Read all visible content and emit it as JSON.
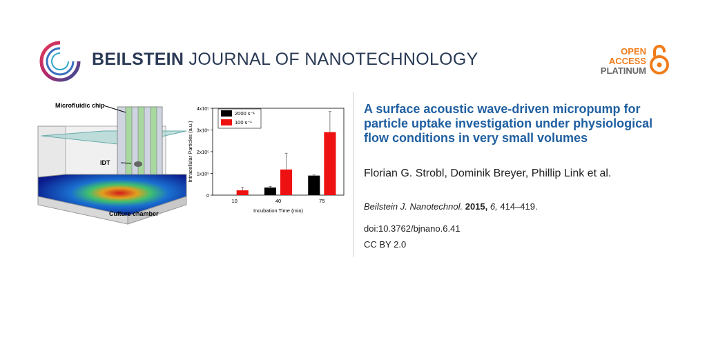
{
  "header": {
    "journal_bold": "BEILSTEIN",
    "journal_rest": "JOURNAL OF NANOTECHNOLOGY",
    "open_access_line1": "OPEN",
    "open_access_line2": "ACCESS",
    "open_access_line3": "PLATINUM"
  },
  "figure": {
    "label_chip": "Microfluidic chip",
    "label_idt": "IDT",
    "label_chamber": "Culture chamber"
  },
  "chart_data": {
    "type": "bar",
    "categories": [
      "10",
      "40",
      "75"
    ],
    "series": [
      {
        "name": "2000 s⁻¹",
        "values": [
          0,
          35000,
          90000
        ],
        "errors": [
          0,
          5000,
          3000
        ],
        "color": "#000000"
      },
      {
        "name": "100 s⁻¹",
        "values": [
          22000,
          118000,
          290000
        ],
        "errors": [
          15000,
          75000,
          95000
        ],
        "color": "#ee1111"
      }
    ],
    "legend": [
      "2000 s⁻¹",
      "100 s⁻¹"
    ],
    "xlabel": "Incubation Time (min)",
    "ylabel": "Intracellular Particles (a.u.)",
    "ylim": [
      0,
      400000
    ],
    "yticks": [
      "0",
      "1x10⁵",
      "2x10⁵",
      "3x10⁵",
      "4x10⁵"
    ],
    "legend_position": "top-left"
  },
  "article": {
    "title": "A surface acoustic wave-driven micropump for particle uptake investigation under physiological flow conditions in very small volumes",
    "authors": "Florian G. Strobl, Dominik Breyer, Phillip Link et al.",
    "journal_abbrev": "Beilstein J. Nanotechnol.",
    "year": "2015,",
    "volume": "6,",
    "pages": "414–419.",
    "doi": "doi:10.3762/bjnano.6.41",
    "license": "CC BY 2.0"
  },
  "colors": {
    "journal_blue": "#2a3a55",
    "title_blue": "#1f5fa0",
    "oa_orange": "#f07c1a"
  }
}
